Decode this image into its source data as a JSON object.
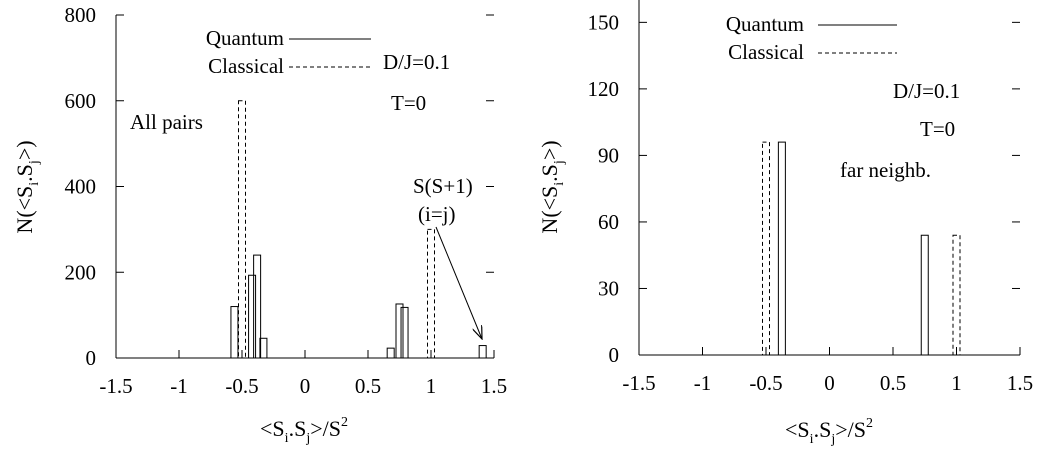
{
  "chart_data": [
    {
      "type": "bar",
      "xlim": [
        -1.5,
        1.5
      ],
      "ylim": [
        0,
        800
      ],
      "xticks": [
        "-1.5",
        "-1",
        "-0.5",
        "0",
        "0.5",
        "1",
        "1.5"
      ],
      "yticks": [
        "0",
        "200",
        "400",
        "600",
        "800"
      ],
      "xlabel": {
        "pre": "<S",
        "s1": "i",
        "mid": ".S",
        "s2": "j",
        "post": ">/S",
        "sup": "2"
      },
      "ylabel": {
        "pre": "N(<S",
        "s1": "i",
        "mid": ".S",
        "s2": "j",
        "post": ">)"
      },
      "legend": [
        {
          "name": "Quantum",
          "style": "solid"
        },
        {
          "name": "Classical",
          "style": "dashed"
        }
      ],
      "annotations": [
        "D/J=0.1",
        "T=0",
        "All pairs"
      ],
      "arrow_label": [
        "S(S+1)",
        "(i=j)"
      ],
      "series": [
        {
          "name": "Quantum",
          "style": "solid",
          "points": [
            [
              -0.56,
              120
            ],
            [
              -0.42,
              193
            ],
            [
              -0.38,
              240
            ],
            [
              -0.33,
              46
            ],
            [
              0.68,
              23
            ],
            [
              0.75,
              126
            ],
            [
              0.79,
              118
            ],
            [
              1.41,
              29
            ]
          ]
        },
        {
          "name": "Classical",
          "style": "dashed",
          "points": [
            [
              -0.5,
              600
            ],
            [
              1.0,
              300
            ]
          ]
        }
      ]
    },
    {
      "type": "bar",
      "xlim": [
        -1.5,
        1.5
      ],
      "ylim": [
        0,
        170
      ],
      "xticks": [
        "-1.5",
        "-1",
        "-0.5",
        "0",
        "0.5",
        "1",
        "1.5"
      ],
      "yticks": [
        "0",
        "30",
        "60",
        "90",
        "120",
        "150"
      ],
      "xlabel": {
        "pre": "<S",
        "s1": "i",
        "mid": ".S",
        "s2": "j",
        "post": ">/S",
        "sup": "2"
      },
      "ylabel": {
        "pre": "N(<S",
        "s1": "i",
        "mid": ".S",
        "s2": "j",
        "post": ">)"
      },
      "legend": [
        {
          "name": "Quantum",
          "style": "solid"
        },
        {
          "name": "Classical",
          "style": "dashed"
        }
      ],
      "annotations": [
        "D/J=0.1",
        "T=0",
        "far neighb."
      ],
      "series": [
        {
          "name": "Quantum",
          "style": "solid",
          "points": [
            [
              -0.375,
              96
            ],
            [
              0.75,
              54
            ]
          ]
        },
        {
          "name": "Classical",
          "style": "dashed",
          "points": [
            [
              -0.5,
              96
            ],
            [
              1.0,
              54
            ]
          ]
        }
      ]
    }
  ]
}
